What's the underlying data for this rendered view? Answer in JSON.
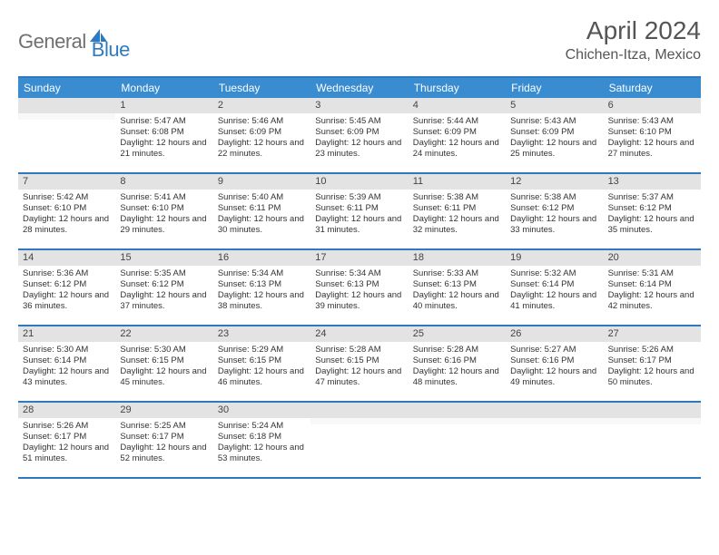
{
  "brand": {
    "general": "General",
    "blue": "Blue"
  },
  "title": "April 2024",
  "location": "Chichen-Itza, Mexico",
  "colors": {
    "accent": "#2f7abf",
    "header_bg": "#3a8cd1",
    "daynum_bg": "#e3e3e3",
    "text": "#333333"
  },
  "weekdays": [
    "Sunday",
    "Monday",
    "Tuesday",
    "Wednesday",
    "Thursday",
    "Friday",
    "Saturday"
  ],
  "weeks": [
    [
      {
        "n": "",
        "sr": "",
        "ss": "",
        "dl": ""
      },
      {
        "n": "1",
        "sr": "Sunrise: 5:47 AM",
        "ss": "Sunset: 6:08 PM",
        "dl": "Daylight: 12 hours and 21 minutes."
      },
      {
        "n": "2",
        "sr": "Sunrise: 5:46 AM",
        "ss": "Sunset: 6:09 PM",
        "dl": "Daylight: 12 hours and 22 minutes."
      },
      {
        "n": "3",
        "sr": "Sunrise: 5:45 AM",
        "ss": "Sunset: 6:09 PM",
        "dl": "Daylight: 12 hours and 23 minutes."
      },
      {
        "n": "4",
        "sr": "Sunrise: 5:44 AM",
        "ss": "Sunset: 6:09 PM",
        "dl": "Daylight: 12 hours and 24 minutes."
      },
      {
        "n": "5",
        "sr": "Sunrise: 5:43 AM",
        "ss": "Sunset: 6:09 PM",
        "dl": "Daylight: 12 hours and 25 minutes."
      },
      {
        "n": "6",
        "sr": "Sunrise: 5:43 AM",
        "ss": "Sunset: 6:10 PM",
        "dl": "Daylight: 12 hours and 27 minutes."
      }
    ],
    [
      {
        "n": "7",
        "sr": "Sunrise: 5:42 AM",
        "ss": "Sunset: 6:10 PM",
        "dl": "Daylight: 12 hours and 28 minutes."
      },
      {
        "n": "8",
        "sr": "Sunrise: 5:41 AM",
        "ss": "Sunset: 6:10 PM",
        "dl": "Daylight: 12 hours and 29 minutes."
      },
      {
        "n": "9",
        "sr": "Sunrise: 5:40 AM",
        "ss": "Sunset: 6:11 PM",
        "dl": "Daylight: 12 hours and 30 minutes."
      },
      {
        "n": "10",
        "sr": "Sunrise: 5:39 AM",
        "ss": "Sunset: 6:11 PM",
        "dl": "Daylight: 12 hours and 31 minutes."
      },
      {
        "n": "11",
        "sr": "Sunrise: 5:38 AM",
        "ss": "Sunset: 6:11 PM",
        "dl": "Daylight: 12 hours and 32 minutes."
      },
      {
        "n": "12",
        "sr": "Sunrise: 5:38 AM",
        "ss": "Sunset: 6:12 PM",
        "dl": "Daylight: 12 hours and 33 minutes."
      },
      {
        "n": "13",
        "sr": "Sunrise: 5:37 AM",
        "ss": "Sunset: 6:12 PM",
        "dl": "Daylight: 12 hours and 35 minutes."
      }
    ],
    [
      {
        "n": "14",
        "sr": "Sunrise: 5:36 AM",
        "ss": "Sunset: 6:12 PM",
        "dl": "Daylight: 12 hours and 36 minutes."
      },
      {
        "n": "15",
        "sr": "Sunrise: 5:35 AM",
        "ss": "Sunset: 6:12 PM",
        "dl": "Daylight: 12 hours and 37 minutes."
      },
      {
        "n": "16",
        "sr": "Sunrise: 5:34 AM",
        "ss": "Sunset: 6:13 PM",
        "dl": "Daylight: 12 hours and 38 minutes."
      },
      {
        "n": "17",
        "sr": "Sunrise: 5:34 AM",
        "ss": "Sunset: 6:13 PM",
        "dl": "Daylight: 12 hours and 39 minutes."
      },
      {
        "n": "18",
        "sr": "Sunrise: 5:33 AM",
        "ss": "Sunset: 6:13 PM",
        "dl": "Daylight: 12 hours and 40 minutes."
      },
      {
        "n": "19",
        "sr": "Sunrise: 5:32 AM",
        "ss": "Sunset: 6:14 PM",
        "dl": "Daylight: 12 hours and 41 minutes."
      },
      {
        "n": "20",
        "sr": "Sunrise: 5:31 AM",
        "ss": "Sunset: 6:14 PM",
        "dl": "Daylight: 12 hours and 42 minutes."
      }
    ],
    [
      {
        "n": "21",
        "sr": "Sunrise: 5:30 AM",
        "ss": "Sunset: 6:14 PM",
        "dl": "Daylight: 12 hours and 43 minutes."
      },
      {
        "n": "22",
        "sr": "Sunrise: 5:30 AM",
        "ss": "Sunset: 6:15 PM",
        "dl": "Daylight: 12 hours and 45 minutes."
      },
      {
        "n": "23",
        "sr": "Sunrise: 5:29 AM",
        "ss": "Sunset: 6:15 PM",
        "dl": "Daylight: 12 hours and 46 minutes."
      },
      {
        "n": "24",
        "sr": "Sunrise: 5:28 AM",
        "ss": "Sunset: 6:15 PM",
        "dl": "Daylight: 12 hours and 47 minutes."
      },
      {
        "n": "25",
        "sr": "Sunrise: 5:28 AM",
        "ss": "Sunset: 6:16 PM",
        "dl": "Daylight: 12 hours and 48 minutes."
      },
      {
        "n": "26",
        "sr": "Sunrise: 5:27 AM",
        "ss": "Sunset: 6:16 PM",
        "dl": "Daylight: 12 hours and 49 minutes."
      },
      {
        "n": "27",
        "sr": "Sunrise: 5:26 AM",
        "ss": "Sunset: 6:17 PM",
        "dl": "Daylight: 12 hours and 50 minutes."
      }
    ],
    [
      {
        "n": "28",
        "sr": "Sunrise: 5:26 AM",
        "ss": "Sunset: 6:17 PM",
        "dl": "Daylight: 12 hours and 51 minutes."
      },
      {
        "n": "29",
        "sr": "Sunrise: 5:25 AM",
        "ss": "Sunset: 6:17 PM",
        "dl": "Daylight: 12 hours and 52 minutes."
      },
      {
        "n": "30",
        "sr": "Sunrise: 5:24 AM",
        "ss": "Sunset: 6:18 PM",
        "dl": "Daylight: 12 hours and 53 minutes."
      },
      {
        "n": "",
        "sr": "",
        "ss": "",
        "dl": ""
      },
      {
        "n": "",
        "sr": "",
        "ss": "",
        "dl": ""
      },
      {
        "n": "",
        "sr": "",
        "ss": "",
        "dl": ""
      },
      {
        "n": "",
        "sr": "",
        "ss": "",
        "dl": ""
      }
    ]
  ]
}
